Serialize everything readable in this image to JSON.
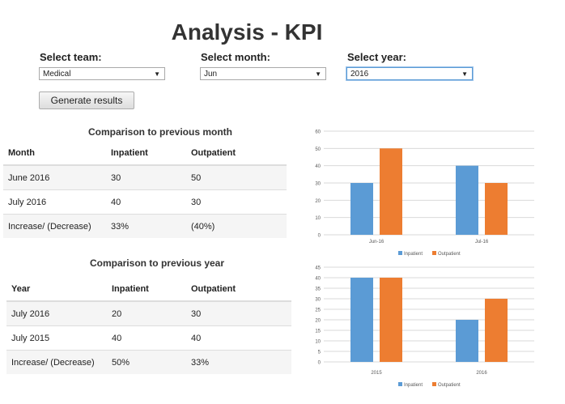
{
  "page": {
    "title": "Analysis - KPI"
  },
  "filters": {
    "team": {
      "label": "Select team:",
      "value": "Medical"
    },
    "month": {
      "label": "Select month:",
      "value": "Jun"
    },
    "year": {
      "label": "Select year:",
      "value": "2016"
    },
    "generate_label": "Generate results"
  },
  "month_table": {
    "title": "Comparison to previous month",
    "headers": [
      "Month",
      "Inpatient",
      "Outpatient"
    ],
    "rows": [
      [
        "June 2016",
        "30",
        "50"
      ],
      [
        "July 2016",
        "40",
        "30"
      ],
      [
        "Increase/ (Decrease)",
        "33%",
        "(40%)"
      ]
    ]
  },
  "year_table": {
    "title": "Comparison to previous year",
    "headers": [
      "Year",
      "Inpatient",
      "Outpatient"
    ],
    "rows": [
      [
        "July 2016",
        "20",
        "30"
      ],
      [
        "July 2015",
        "40",
        "40"
      ],
      [
        "Increase/ (Decrease)",
        "50%",
        "33%"
      ]
    ]
  },
  "chart_data": [
    {
      "type": "bar",
      "categories": [
        "Jun-16",
        "Jul-16"
      ],
      "series": [
        {
          "name": "Inpatient",
          "values": [
            30,
            40
          ],
          "color": "#5b9bd5"
        },
        {
          "name": "Outpatient",
          "values": [
            50,
            30
          ],
          "color": "#ed7d31"
        }
      ],
      "ylim": [
        0,
        60
      ],
      "yticks": [
        0,
        10,
        20,
        30,
        40,
        50,
        60
      ],
      "grid": true,
      "legend": "bottom"
    },
    {
      "type": "bar",
      "categories": [
        "2015",
        "2016"
      ],
      "series": [
        {
          "name": "Inpatient",
          "values": [
            40,
            20
          ],
          "color": "#5b9bd5"
        },
        {
          "name": "Outpatient",
          "values": [
            40,
            30
          ],
          "color": "#ed7d31"
        }
      ],
      "ylim": [
        0,
        45
      ],
      "yticks": [
        0,
        5,
        10,
        15,
        20,
        25,
        30,
        35,
        40,
        45
      ],
      "grid": true,
      "legend": "bottom"
    }
  ]
}
